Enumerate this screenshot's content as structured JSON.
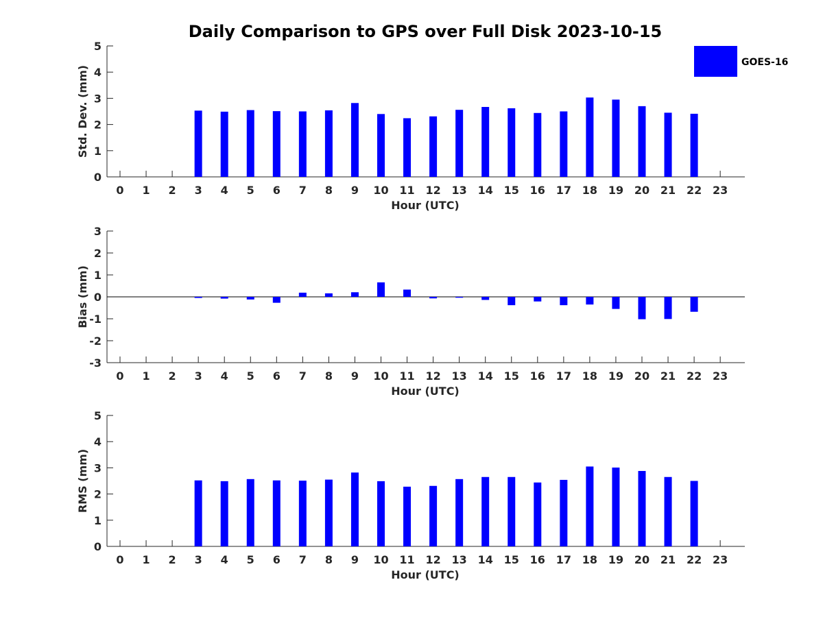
{
  "figure_title": "Daily Comparison to GPS over Full Disk 2023-10-15",
  "colors": {
    "bar": "#0000ff",
    "axis": "#262626",
    "title": "#000000"
  },
  "chart_data": [
    {
      "type": "bar",
      "id": "stddev",
      "ylabel": "Std. Dev. (mm)",
      "xlabel": "Hour (UTC)",
      "ylim": [
        0,
        5
      ],
      "yticks": [
        0,
        1,
        2,
        3,
        4,
        5
      ],
      "zero_line": false,
      "categories": [
        "0",
        "1",
        "2",
        "3",
        "4",
        "5",
        "6",
        "7",
        "8",
        "9",
        "10",
        "11",
        "12",
        "13",
        "14",
        "15",
        "16",
        "17",
        "18",
        "19",
        "20",
        "21",
        "22",
        "23"
      ],
      "series": [
        {
          "name": "GOES-16",
          "values": [
            null,
            null,
            null,
            2.53,
            2.49,
            2.55,
            2.51,
            2.5,
            2.54,
            2.82,
            2.4,
            2.24,
            2.31,
            2.56,
            2.67,
            2.62,
            2.44,
            2.5,
            3.03,
            2.95,
            2.7,
            2.45,
            2.41,
            null
          ]
        }
      ],
      "legend": {
        "entries": [
          "GOES-16"
        ],
        "position": "top-right"
      }
    },
    {
      "type": "bar",
      "id": "bias",
      "ylabel": "Bias (mm)",
      "xlabel": "Hour (UTC)",
      "ylim": [
        -3,
        3
      ],
      "yticks": [
        -3,
        -2,
        -1,
        0,
        1,
        2,
        3
      ],
      "zero_line": true,
      "categories": [
        "0",
        "1",
        "2",
        "3",
        "4",
        "5",
        "6",
        "7",
        "8",
        "9",
        "10",
        "11",
        "12",
        "13",
        "14",
        "15",
        "16",
        "17",
        "18",
        "19",
        "20",
        "21",
        "22",
        "23"
      ],
      "series": [
        {
          "name": "GOES-16",
          "values": [
            null,
            null,
            null,
            -0.05,
            -0.08,
            -0.12,
            -0.27,
            0.19,
            0.16,
            0.21,
            0.66,
            0.33,
            -0.07,
            -0.04,
            -0.14,
            -0.38,
            -0.21,
            -0.38,
            -0.35,
            -0.55,
            -1.02,
            -1.01,
            -0.68,
            null
          ]
        }
      ]
    },
    {
      "type": "bar",
      "id": "rms",
      "ylabel": "RMS (mm)",
      "xlabel": "Hour (UTC)",
      "ylim": [
        0,
        5
      ],
      "yticks": [
        0,
        1,
        2,
        3,
        4,
        5
      ],
      "zero_line": false,
      "categories": [
        "0",
        "1",
        "2",
        "3",
        "4",
        "5",
        "6",
        "7",
        "8",
        "9",
        "10",
        "11",
        "12",
        "13",
        "14",
        "15",
        "16",
        "17",
        "18",
        "19",
        "20",
        "21",
        "22",
        "23"
      ],
      "series": [
        {
          "name": "GOES-16",
          "values": [
            null,
            null,
            null,
            2.52,
            2.49,
            2.57,
            2.52,
            2.51,
            2.55,
            2.82,
            2.49,
            2.28,
            2.31,
            2.57,
            2.65,
            2.65,
            2.44,
            2.54,
            3.05,
            3.01,
            2.88,
            2.65,
            2.5,
            null
          ]
        }
      ]
    }
  ]
}
